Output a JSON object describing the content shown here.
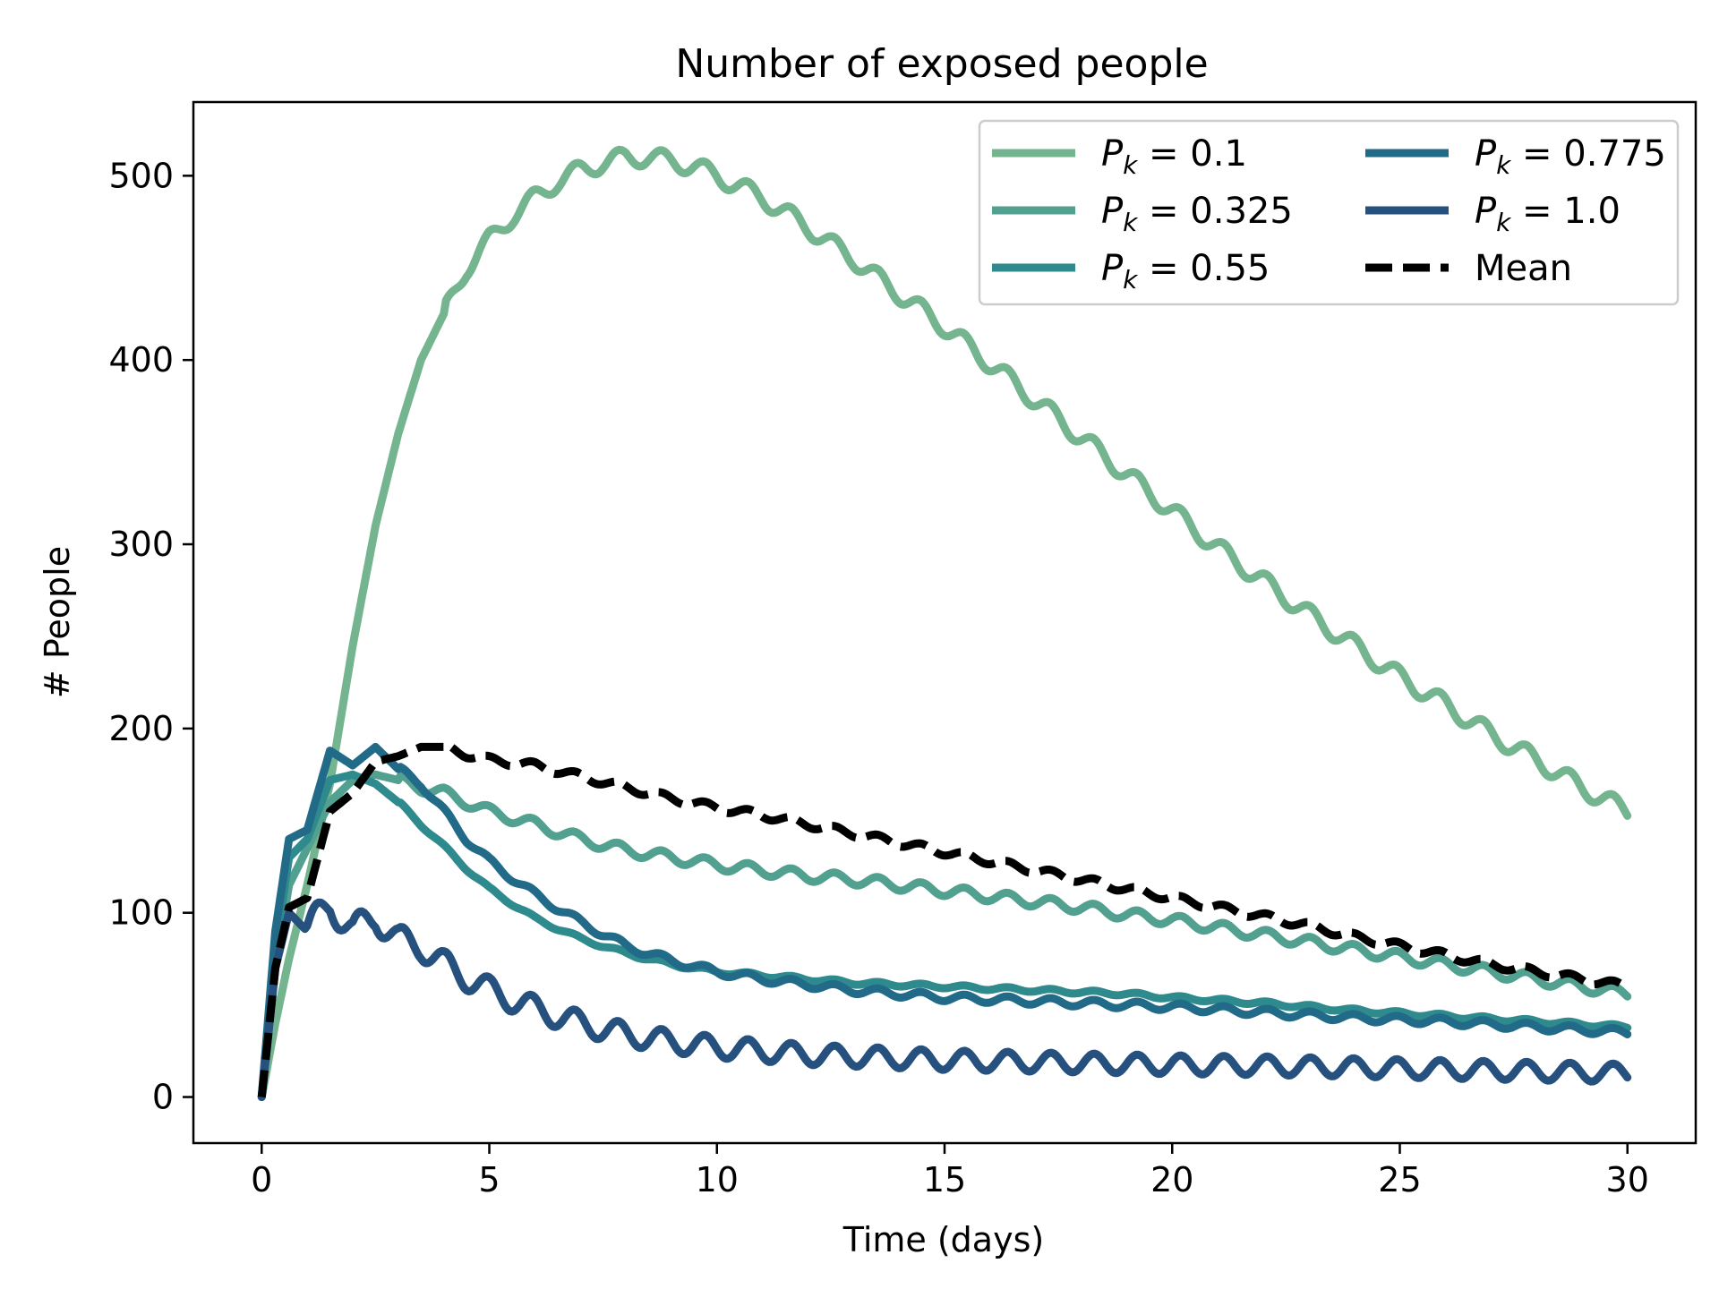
{
  "chart_data": {
    "type": "line",
    "title": "Number of exposed people",
    "xlabel": "Time (days)",
    "ylabel": "# People",
    "xlim": [
      -1.5,
      31.5
    ],
    "ylim": [
      -25,
      540
    ],
    "xticks": [
      0,
      5,
      10,
      15,
      20,
      25,
      30
    ],
    "yticks": [
      0,
      100,
      200,
      300,
      400,
      500
    ],
    "xtick_labels": [
      "0",
      "5",
      "10",
      "15",
      "20",
      "25",
      "30"
    ],
    "ytick_labels": [
      "0",
      "100",
      "200",
      "300",
      "400",
      "500"
    ],
    "grid": false,
    "legend": {
      "placement": "top-right",
      "columns": 2
    },
    "series": [
      {
        "name": "P_k = 0.1",
        "label_main": "P",
        "label_sub": "k",
        "label_rest": " = 0.1",
        "color": "#74b590",
        "dash": "solid",
        "points": [
          [
            0,
            0
          ],
          [
            0.3,
            40
          ],
          [
            0.6,
            75
          ],
          [
            1,
            115
          ],
          [
            1.5,
            170
          ],
          [
            2,
            245
          ],
          [
            2.5,
            310
          ],
          [
            3,
            360
          ],
          [
            3.5,
            400
          ],
          [
            4,
            425
          ],
          [
            4.5,
            450
          ],
          [
            5,
            465
          ],
          [
            5.5,
            478
          ],
          [
            6,
            488
          ],
          [
            6.5,
            497
          ],
          [
            7,
            503
          ],
          [
            7.5,
            507
          ],
          [
            8,
            510
          ],
          [
            8.5,
            510
          ],
          [
            9,
            508
          ],
          [
            9.5,
            505
          ],
          [
            10,
            500
          ],
          [
            10.5,
            494
          ],
          [
            11,
            488
          ],
          [
            11.5,
            480
          ],
          [
            12,
            472
          ],
          [
            12.5,
            463
          ],
          [
            13,
            455
          ],
          [
            13.5,
            445
          ],
          [
            14,
            436
          ],
          [
            15,
            418
          ],
          [
            16,
            398
          ],
          [
            17,
            378
          ],
          [
            18,
            358
          ],
          [
            19,
            338
          ],
          [
            20,
            318
          ],
          [
            21,
            298
          ],
          [
            22,
            280
          ],
          [
            23,
            262
          ],
          [
            24,
            245
          ],
          [
            25,
            228
          ],
          [
            26,
            213
          ],
          [
            27,
            197
          ],
          [
            28,
            183
          ],
          [
            29,
            168
          ],
          [
            30,
            155
          ]
        ],
        "wave": 5,
        "wave_from": 4
      },
      {
        "name": "P_k = 0.325",
        "label_main": "P",
        "label_sub": "k",
        "label_rest": " = 0.325",
        "color": "#52a08f",
        "dash": "solid",
        "points": [
          [
            0,
            0
          ],
          [
            0.3,
            70
          ],
          [
            0.6,
            115
          ],
          [
            1,
            135
          ],
          [
            1.5,
            160
          ],
          [
            2,
            172
          ],
          [
            2.5,
            175
          ],
          [
            3,
            172
          ],
          [
            3.5,
            168
          ],
          [
            4,
            165
          ],
          [
            4.5,
            160
          ],
          [
            5,
            155
          ],
          [
            6,
            148
          ],
          [
            7,
            140
          ],
          [
            8,
            134
          ],
          [
            9,
            130
          ],
          [
            10,
            126
          ],
          [
            11,
            123
          ],
          [
            12,
            120
          ],
          [
            13,
            118
          ],
          [
            14,
            115
          ],
          [
            15,
            112
          ],
          [
            16,
            109
          ],
          [
            17,
            106
          ],
          [
            18,
            103
          ],
          [
            19,
            99
          ],
          [
            20,
            96
          ],
          [
            21,
            92
          ],
          [
            22,
            88
          ],
          [
            23,
            84
          ],
          [
            24,
            80
          ],
          [
            25,
            76
          ],
          [
            26,
            72
          ],
          [
            27,
            68
          ],
          [
            28,
            64
          ],
          [
            29,
            60
          ],
          [
            30,
            56
          ]
        ],
        "wave": 3,
        "wave_from": 3
      },
      {
        "name": "P_k = 0.55",
        "label_main": "P",
        "label_sub": "k",
        "label_rest": " = 0.55",
        "color": "#2f8a8d",
        "dash": "solid",
        "points": [
          [
            0,
            0
          ],
          [
            0.3,
            80
          ],
          [
            0.6,
            130
          ],
          [
            1,
            140
          ],
          [
            1.5,
            172
          ],
          [
            2,
            175
          ],
          [
            2.5,
            170
          ],
          [
            3,
            160
          ],
          [
            3.5,
            148
          ],
          [
            4,
            136
          ],
          [
            4.5,
            124
          ],
          [
            5,
            113
          ],
          [
            6,
            97
          ],
          [
            7,
            86
          ],
          [
            8,
            78
          ],
          [
            9,
            72
          ],
          [
            10,
            68
          ],
          [
            11,
            66
          ],
          [
            12,
            64
          ],
          [
            13,
            62
          ],
          [
            14,
            61
          ],
          [
            15,
            60
          ],
          [
            16,
            59
          ],
          [
            17,
            58
          ],
          [
            18,
            57
          ],
          [
            19,
            56
          ],
          [
            20,
            54
          ],
          [
            22,
            51
          ],
          [
            24,
            47
          ],
          [
            26,
            44
          ],
          [
            28,
            41
          ],
          [
            30,
            38
          ]
        ],
        "wave": 1,
        "wave_from": 3
      },
      {
        "name": "P_k = 0.775",
        "label_main": "P",
        "label_sub": "k",
        "label_rest": " = 0.775",
        "color": "#216b89",
        "dash": "solid",
        "points": [
          [
            0,
            0
          ],
          [
            0.3,
            90
          ],
          [
            0.6,
            140
          ],
          [
            1,
            145
          ],
          [
            1.5,
            188
          ],
          [
            2,
            180
          ],
          [
            2.5,
            190
          ],
          [
            3,
            178
          ],
          [
            3.5,
            170
          ],
          [
            4,
            155
          ],
          [
            4.5,
            140
          ],
          [
            5,
            128
          ],
          [
            6,
            110
          ],
          [
            7,
            95
          ],
          [
            8,
            82
          ],
          [
            9,
            74
          ],
          [
            10,
            68
          ],
          [
            11,
            64
          ],
          [
            12,
            61
          ],
          [
            13,
            58
          ],
          [
            14,
            56
          ],
          [
            15,
            54
          ],
          [
            16,
            53
          ],
          [
            17,
            52
          ],
          [
            18,
            51
          ],
          [
            19,
            50
          ],
          [
            20,
            49
          ],
          [
            22,
            46
          ],
          [
            24,
            43
          ],
          [
            26,
            41
          ],
          [
            28,
            38
          ],
          [
            30,
            35
          ]
        ],
        "wave": 2,
        "wave_from": 3
      },
      {
        "name": "P_k = 1.0",
        "label_main": "P",
        "label_sub": "k",
        "label_rest": " = 1.0",
        "color": "#26517f",
        "dash": "solid",
        "points": [
          [
            0,
            0
          ],
          [
            0.3,
            70
          ],
          [
            0.6,
            100
          ],
          [
            1,
            90
          ],
          [
            1.5,
            105
          ],
          [
            2,
            90
          ],
          [
            2.5,
            98
          ],
          [
            3,
            85
          ],
          [
            3.5,
            82
          ],
          [
            4,
            72
          ],
          [
            4.5,
            65
          ],
          [
            5,
            58
          ],
          [
            6,
            48
          ],
          [
            7,
            40
          ],
          [
            8,
            34
          ],
          [
            9,
            30
          ],
          [
            10,
            27
          ],
          [
            11,
            25
          ],
          [
            12,
            23
          ],
          [
            13,
            22
          ],
          [
            14,
            21
          ],
          [
            15,
            20
          ],
          [
            16,
            19.5
          ],
          [
            17,
            19
          ],
          [
            18,
            18.5
          ],
          [
            19,
            18
          ],
          [
            20,
            17.5
          ],
          [
            22,
            17
          ],
          [
            24,
            16
          ],
          [
            26,
            15
          ],
          [
            28,
            14
          ],
          [
            30,
            13
          ]
        ],
        "wave": 9,
        "wave_from": 1,
        "wave_decay": true
      },
      {
        "name": "Mean",
        "label_main": "Mean",
        "label_sub": "",
        "label_rest": "",
        "color": "#000000",
        "dash": "dashed",
        "points": [
          [
            0,
            0
          ],
          [
            0.3,
            70
          ],
          [
            0.6,
            103
          ],
          [
            1,
            108
          ],
          [
            1.5,
            155
          ],
          [
            2,
            165
          ],
          [
            2.5,
            182
          ],
          [
            3,
            185
          ],
          [
            3.5,
            190
          ],
          [
            4,
            190
          ],
          [
            4.5,
            186
          ],
          [
            5,
            183
          ],
          [
            6,
            180
          ],
          [
            7,
            174
          ],
          [
            8,
            168
          ],
          [
            9,
            162
          ],
          [
            10,
            157
          ],
          [
            11,
            153
          ],
          [
            12,
            148
          ],
          [
            13,
            143
          ],
          [
            14,
            138
          ],
          [
            15,
            133
          ],
          [
            16,
            128
          ],
          [
            17,
            123
          ],
          [
            18,
            118
          ],
          [
            19,
            113
          ],
          [
            20,
            108
          ],
          [
            21,
            103
          ],
          [
            22,
            98
          ],
          [
            23,
            93
          ],
          [
            24,
            87
          ],
          [
            25,
            82
          ],
          [
            26,
            77
          ],
          [
            27,
            72
          ],
          [
            28,
            68
          ],
          [
            29,
            64
          ],
          [
            30,
            60
          ]
        ],
        "wave": 2,
        "wave_from": 4
      }
    ]
  }
}
